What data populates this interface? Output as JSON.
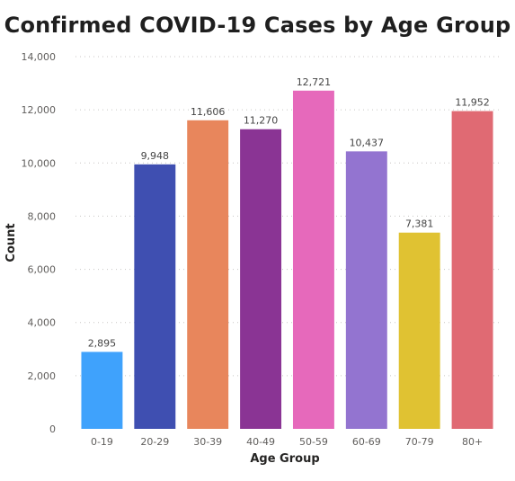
{
  "chart_data": {
    "type": "bar",
    "title": "Confirmed COVID-19 Cases by Age Group",
    "xlabel": "Age Group",
    "ylabel": "Count",
    "categories": [
      "0-19",
      "20-29",
      "30-39",
      "40-49",
      "50-59",
      "60-69",
      "70-79",
      "80+"
    ],
    "values": [
      2895,
      9948,
      11606,
      11270,
      12721,
      10437,
      7381,
      11952
    ],
    "value_labels": [
      "2,895",
      "9,948",
      "11,606",
      "11,270",
      "12,721",
      "10,437",
      "7,381",
      "11,952"
    ],
    "colors": [
      "#3fa2fc",
      "#3f4fb1",
      "#e8865c",
      "#8a3494",
      "#e669bb",
      "#9374d0",
      "#e0c232",
      "#e06a73"
    ],
    "yticks": [
      0,
      2000,
      4000,
      6000,
      8000,
      10000,
      12000,
      14000
    ],
    "ytick_labels": [
      "0",
      "2,000",
      "4,000",
      "6,000",
      "8,000",
      "10,000",
      "12,000",
      "14,000"
    ],
    "ylim": [
      0,
      14000
    ],
    "grid": true,
    "legend": false
  }
}
